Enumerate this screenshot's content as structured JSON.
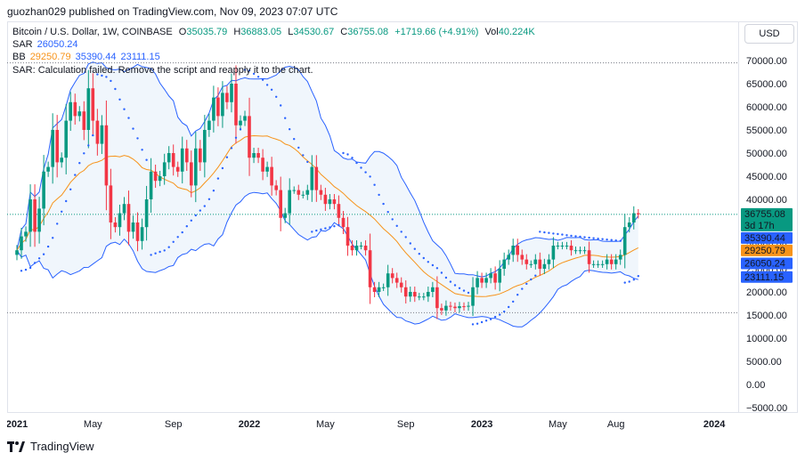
{
  "header": {
    "publish_line": "guozhan029 published on TradingView.com, Nov 09, 2023 07:07 UTC"
  },
  "legend": {
    "symbol": "Bitcoin / U.S. Dollar, 1W, COINBASE",
    "o_label": "O",
    "o_value": "35035.79",
    "h_label": "H",
    "h_value": "36883.05",
    "l_label": "L",
    "l_value": "34530.67",
    "c_label": "C",
    "c_value": "36755.08",
    "change": "+1719.66 (+4.91%)",
    "vol_label": "Vol",
    "vol_value": "40.224K",
    "sar_label": "SAR",
    "sar_value": "26050.24",
    "bb_label": "BB",
    "bb_basis": "29250.79",
    "bb_upper": "35390.44",
    "bb_lower": "23111.15",
    "error_text": "SAR: Calculation failed. Remove the script and reapply it to the chart."
  },
  "price_axis": {
    "currency": "USD",
    "ticks": [
      "70000.00",
      "65000.00",
      "60000.00",
      "55000.00",
      "50000.00",
      "45000.00",
      "40000.00",
      "35000.00",
      "30000.00",
      "25000.00",
      "20000.00",
      "15000.00",
      "10000.00",
      "5000.00",
      "0.00",
      "−5000.00"
    ],
    "labels": [
      {
        "text": "36755.08",
        "sub": "3d 17h",
        "value": 36755.08,
        "color": "#089981"
      },
      {
        "text": "35390.44",
        "value": 35390.44,
        "color": "#2962ff"
      },
      {
        "text": "29250.79",
        "value": 29250.79,
        "color": "#f7931a"
      },
      {
        "text": "26050.24",
        "value": 26050.24,
        "color": "#2962ff"
      },
      {
        "text": "23111.15",
        "value": 23111.15,
        "color": "#2962ff"
      }
    ]
  },
  "time_axis": {
    "ticks": [
      {
        "text": "2021",
        "week": 0,
        "bold": true
      },
      {
        "text": "May",
        "week": 17,
        "bold": false
      },
      {
        "text": "Sep",
        "week": 35,
        "bold": false
      },
      {
        "text": "2022",
        "week": 52,
        "bold": true
      },
      {
        "text": "May",
        "week": 69,
        "bold": false
      },
      {
        "text": "Sep",
        "week": 87,
        "bold": false
      },
      {
        "text": "2023",
        "week": 104,
        "bold": true
      },
      {
        "text": "May",
        "week": 121,
        "bold": false
      },
      {
        "text": "Aug",
        "week": 134,
        "bold": false
      },
      {
        "text": "2024",
        "week": 156,
        "bold": true
      }
    ]
  },
  "footer": {
    "brand": "TradingView"
  },
  "colors": {
    "up": "#089981",
    "down": "#f23645",
    "basis": "#f7931a",
    "band": "#2962ff",
    "fill": "#e3effa"
  },
  "chart_data": {
    "type": "candlestick",
    "title": "Bitcoin / U.S. Dollar, 1W, COINBASE",
    "ylim": [
      -7500,
      72500
    ],
    "x_unit": "weeks from 2021-01-04",
    "candles_close": [
      29000,
      32000,
      33000,
      40000,
      33000,
      38000,
      46000,
      47000,
      55000,
      48000,
      49000,
      57000,
      61000,
      58000,
      59000,
      55000,
      64000,
      57000,
      52000,
      56000,
      43000,
      35000,
      34000,
      37000,
      39000,
      33000,
      35000,
      31000,
      34000,
      40000,
      46000,
      44000,
      45000,
      48000,
      50000,
      47000,
      46000,
      51000,
      48000,
      43000,
      51000,
      48000,
      55000,
      57000,
      62000,
      58000,
      63000,
      61000,
      65000,
      56000,
      57000,
      58000,
      49000,
      50000,
      49000,
      46000,
      47000,
      43000,
      42000,
      36000,
      37000,
      42000,
      42000,
      41000,
      41000,
      42000,
      47000,
      42000,
      41000,
      39000,
      40000,
      39000,
      36000,
      34000,
      30000,
      29000,
      30000,
      30000,
      29000,
      21000,
      20000,
      21000,
      21000,
      24000,
      23000,
      22000,
      21000,
      19000,
      20000,
      19000,
      19000,
      19000,
      20000,
      21000,
      16500,
      16000,
      17000,
      16800,
      16500,
      16900,
      16800,
      17000,
      21000,
      23000,
      22000,
      23000,
      24000,
      22000,
      25000,
      27000,
      28000,
      30000,
      28000,
      27000,
      26000,
      26000,
      27000,
      25000,
      26000,
      27000,
      30000,
      30000,
      30000,
      30000,
      29000,
      29000,
      29000,
      29000,
      26000,
      26000,
      26000,
      26000,
      27000,
      26000,
      27000,
      28000,
      34000,
      35000,
      37000,
      36755
    ]
  }
}
